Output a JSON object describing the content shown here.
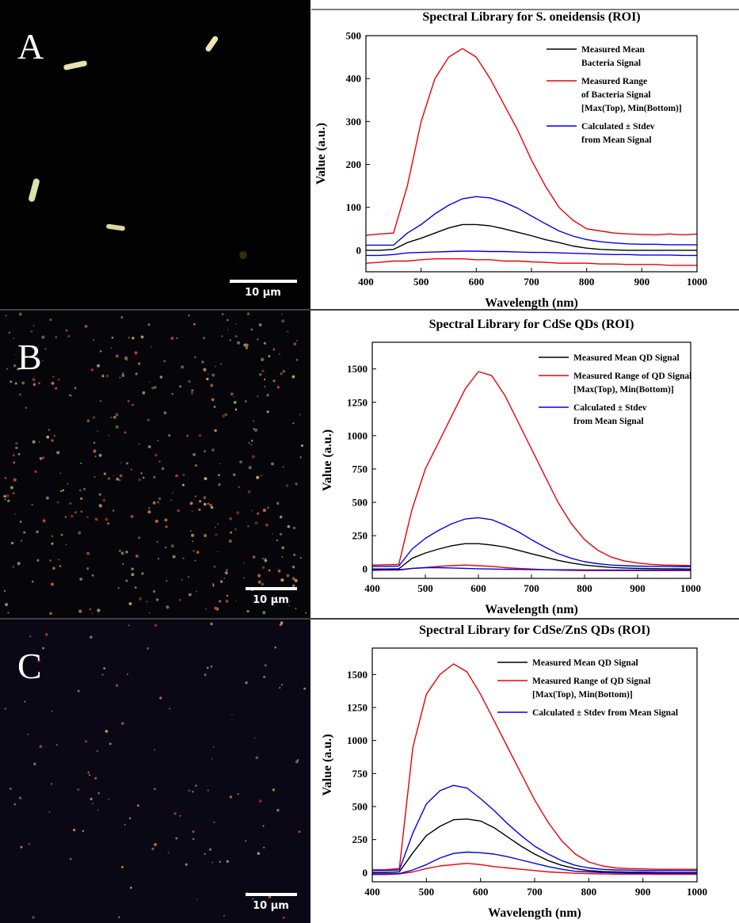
{
  "panels": [
    {
      "label": "A",
      "scale_bar": "10 µm"
    },
    {
      "label": "B",
      "scale_bar": "10 µm"
    },
    {
      "label": "C",
      "scale_bar": "10 µm"
    }
  ],
  "chart_data": [
    {
      "type": "line",
      "title": "Spectral Library for S. oneidensis (ROI)",
      "xlabel": "Wavelength (nm)",
      "ylabel": "Value (a.u.)",
      "xlim": [
        400,
        1000
      ],
      "xticks": [
        400,
        500,
        600,
        700,
        800,
        900,
        1000
      ],
      "ylim": [
        -50,
        500
      ],
      "yticks": [
        0,
        100,
        200,
        300,
        400,
        500
      ],
      "x": [
        400,
        425,
        450,
        475,
        500,
        525,
        550,
        575,
        600,
        625,
        650,
        675,
        700,
        725,
        750,
        775,
        800,
        825,
        850,
        875,
        900,
        925,
        950,
        975,
        1000
      ],
      "series": [
        {
          "name": "Measured Mean\nBacteria Signal",
          "color": "#000000",
          "values": [
            0,
            0,
            2,
            18,
            28,
            40,
            52,
            60,
            60,
            57,
            50,
            42,
            34,
            25,
            18,
            10,
            5,
            2,
            1,
            0,
            0,
            0,
            0,
            0,
            0
          ]
        },
        {
          "name": "Measured Range\nof Bacteria Signal\n[Max(Top), Min(Bottom)]",
          "color": "#e8000b",
          "values": [
            35,
            38,
            40,
            150,
            300,
            400,
            450,
            470,
            450,
            400,
            340,
            280,
            210,
            150,
            100,
            70,
            50,
            45,
            40,
            38,
            37,
            36,
            38,
            36,
            38
          ],
          "values_low": [
            -30,
            -28,
            -25,
            -25,
            -22,
            -20,
            -20,
            -20,
            -22,
            -22,
            -25,
            -25,
            -27,
            -28,
            -30,
            -30,
            -30,
            -32,
            -32,
            -33,
            -33,
            -33,
            -35,
            -35,
            -35
          ]
        },
        {
          "name": "Calculated ± Stdev\nfrom Mean Signal",
          "color": "#0000ee",
          "values": [
            12,
            12,
            12,
            40,
            60,
            85,
            105,
            120,
            125,
            122,
            112,
            98,
            80,
            62,
            45,
            33,
            25,
            20,
            17,
            15,
            14,
            14,
            13,
            13,
            13
          ],
          "values_low": [
            -12,
            -12,
            -10,
            -6,
            -5,
            -4,
            -3,
            -2,
            -2,
            -3,
            -3,
            -4,
            -5,
            -5,
            -6,
            -7,
            -8,
            -9,
            -10,
            -10,
            -11,
            -11,
            -11,
            -12,
            -12
          ]
        }
      ]
    },
    {
      "type": "line",
      "title": "Spectral Library for CdSe QDs (ROI)",
      "xlabel": "Wavelength (nm)",
      "ylabel": "Value (a.u.)",
      "xlim": [
        400,
        1000
      ],
      "xticks": [
        400,
        500,
        600,
        700,
        800,
        900,
        1000
      ],
      "ylim": [
        -70,
        1700
      ],
      "yticks": [
        0,
        250,
        500,
        750,
        1000,
        1250,
        1500
      ],
      "x": [
        400,
        425,
        450,
        475,
        500,
        525,
        550,
        575,
        600,
        625,
        650,
        675,
        700,
        725,
        750,
        775,
        800,
        825,
        850,
        875,
        900,
        925,
        950,
        975,
        1000
      ],
      "series": [
        {
          "name": "Measured Mean QD Signal",
          "color": "#000000",
          "values": [
            0,
            0,
            2,
            80,
            120,
            150,
            175,
            190,
            190,
            180,
            165,
            140,
            115,
            90,
            65,
            45,
            30,
            20,
            12,
            8,
            5,
            3,
            2,
            1,
            0
          ]
        },
        {
          "name": "Measured Range of QD Signal\n[Max(Top), Min(Bottom)]",
          "color": "#e8000b",
          "values": [
            30,
            32,
            35,
            450,
            750,
            950,
            1150,
            1350,
            1480,
            1450,
            1300,
            1100,
            900,
            700,
            500,
            340,
            220,
            140,
            90,
            60,
            45,
            35,
            30,
            28,
            25
          ],
          "values_low": [
            -10,
            -8,
            -8,
            5,
            10,
            20,
            25,
            30,
            25,
            20,
            10,
            5,
            0,
            -5,
            -8,
            -10,
            -12,
            -12,
            -12,
            -12,
            -12,
            -12,
            -12,
            -12,
            -12
          ]
        },
        {
          "name": "Calculated ± Stdev\nfrom Mean Signal",
          "color": "#0000ee",
          "values": [
            20,
            20,
            22,
            150,
            230,
            290,
            340,
            375,
            385,
            370,
            330,
            280,
            220,
            165,
            115,
            80,
            55,
            40,
            30,
            25,
            22,
            20,
            20,
            18,
            18
          ],
          "values_low": [
            -5,
            -5,
            -5,
            5,
            10,
            10,
            8,
            5,
            2,
            0,
            -2,
            -3,
            -4,
            -5,
            -6,
            -6,
            -7,
            -7,
            -8,
            -8,
            -8,
            -8,
            -8,
            -8,
            -8
          ]
        }
      ]
    },
    {
      "type": "line",
      "title": "Spectral Library for CdSe/ZnS QDs (ROI)",
      "xlabel": "Wavelength (nm)",
      "ylabel": "Value (a.u.)",
      "xlim": [
        400,
        1000
      ],
      "xticks": [
        400,
        500,
        600,
        700,
        800,
        900,
        1000
      ],
      "ylim": [
        -70,
        1700
      ],
      "yticks": [
        0,
        250,
        500,
        750,
        1000,
        1250,
        1500
      ],
      "x": [
        400,
        425,
        450,
        475,
        500,
        525,
        550,
        575,
        600,
        625,
        650,
        675,
        700,
        725,
        750,
        775,
        800,
        825,
        850,
        875,
        900,
        925,
        950,
        975,
        1000
      ],
      "series": [
        {
          "name": "Measured Mean QD Signal",
          "color": "#000000",
          "values": [
            0,
            0,
            5,
            150,
            280,
            350,
            400,
            405,
            390,
            340,
            270,
            200,
            140,
            90,
            55,
            30,
            15,
            8,
            5,
            3,
            2,
            1,
            0,
            0,
            0
          ]
        },
        {
          "name": "Measured Range of QD Signal\n[Max(Top), Min(Bottom)]",
          "color": "#e8000b",
          "values": [
            20,
            22,
            30,
            950,
            1350,
            1500,
            1580,
            1520,
            1350,
            1150,
            950,
            750,
            550,
            380,
            240,
            140,
            80,
            50,
            35,
            30,
            28,
            25,
            25,
            25,
            25
          ],
          "values_low": [
            -15,
            -15,
            -10,
            5,
            30,
            50,
            60,
            70,
            60,
            45,
            35,
            25,
            15,
            5,
            0,
            -5,
            -8,
            -10,
            -12,
            -12,
            -12,
            -13,
            -13,
            -13,
            -13
          ]
        },
        {
          "name": "Calculated ± Stdev from Mean Signal",
          "color": "#0000ee",
          "values": [
            15,
            15,
            20,
            300,
            520,
            620,
            660,
            640,
            560,
            470,
            370,
            280,
            200,
            140,
            90,
            55,
            35,
            25,
            20,
            18,
            16,
            15,
            15,
            15,
            15
          ],
          "values_low": [
            -10,
            -10,
            -8,
            20,
            60,
            110,
            145,
            155,
            150,
            140,
            120,
            95,
            70,
            45,
            25,
            10,
            5,
            0,
            -2,
            -4,
            -5,
            -5,
            -6,
            -6,
            -6
          ]
        }
      ]
    }
  ]
}
